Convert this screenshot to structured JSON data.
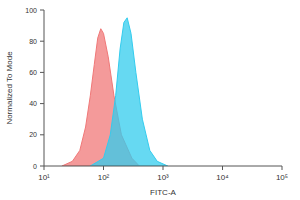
{
  "chart_data": {
    "type": "area",
    "log": "x",
    "xlabel": "FITC-A",
    "ylabel": "Normalized To Mode",
    "xlim": [
      10,
      100000
    ],
    "xticks": [
      {
        "value": 10,
        "label": "10¹"
      },
      {
        "value": 100,
        "label": "10²"
      },
      {
        "value": 1000,
        "label": "10³"
      },
      {
        "value": 10000,
        "label": "10⁴"
      },
      {
        "value": 100000,
        "label": "10⁵"
      }
    ],
    "ylim": [
      0,
      100
    ],
    "yticks": [
      0,
      20,
      40,
      60,
      80,
      100
    ],
    "series": [
      {
        "color": "#f07878",
        "x": [
          20,
          30,
          40,
          50,
          60,
          70,
          80,
          90,
          100,
          120,
          150,
          200,
          300,
          400
        ],
        "values": [
          0,
          3,
          10,
          25,
          45,
          65,
          82,
          88,
          85,
          70,
          45,
          20,
          5,
          0
        ]
      },
      {
        "color": "#33ccee",
        "x": [
          60,
          100,
          130,
          160,
          190,
          220,
          250,
          290,
          350,
          450,
          600,
          800,
          1200
        ],
        "values": [
          0,
          5,
          20,
          45,
          75,
          92,
          95,
          85,
          60,
          30,
          10,
          3,
          0
        ]
      }
    ]
  }
}
